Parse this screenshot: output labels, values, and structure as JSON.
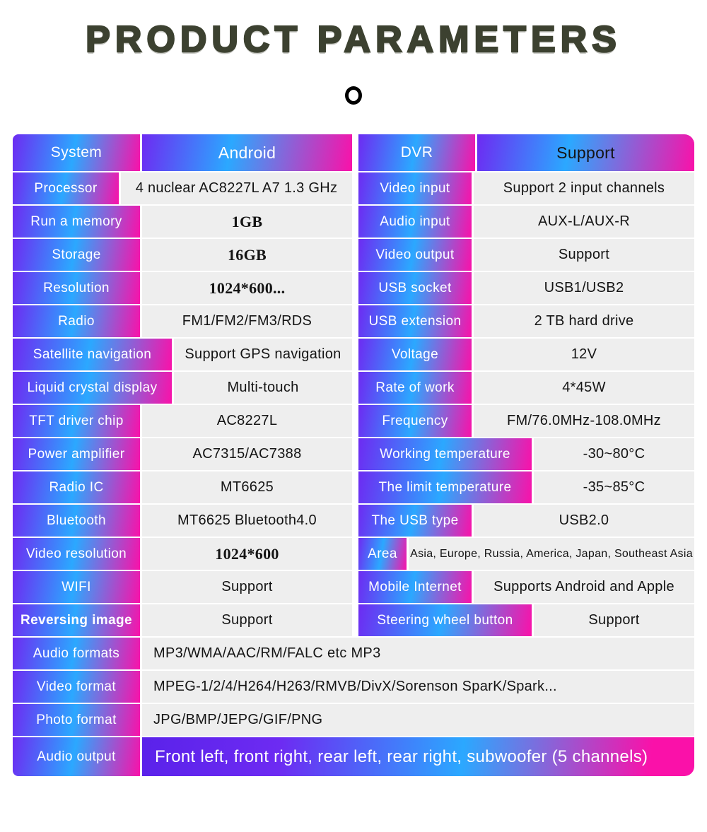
{
  "title": "PRODUCT PARAMETERS",
  "colors": {
    "gradient_purple": "#6D2BF2",
    "gradient_cyan": "#2BA8FF",
    "gradient_magenta": "#FA11A9",
    "title_text": "#3C4130",
    "value_cell_bg": "#EEEEEE",
    "value_text": "#141414",
    "label_text": "#FFFFFF"
  },
  "table": {
    "left_rows": [
      {
        "l": "System",
        "v": "Android",
        "lw": 180,
        "h": 1
      },
      {
        "l": "Processor",
        "v": "4 nuclear   AC8227L A7 1.3 GHz",
        "lw": 150
      },
      {
        "l": "Run a memory",
        "v": "1GB",
        "lw": 180,
        "vc": "serif"
      },
      {
        "l": "Storage",
        "v": "16GB",
        "lw": 180,
        "vc": "serif"
      },
      {
        "l": "Resolution",
        "v": "1024*600...",
        "lw": 180,
        "vc": "serif"
      },
      {
        "l": "Radio",
        "v": "FM1/FM2/FM3/RDS",
        "lw": 180
      },
      {
        "l": "Satellite navigation",
        "v": "Support GPS navigation",
        "lw": 225
      },
      {
        "l": "Liquid crystal display",
        "v": "Multi-touch",
        "lw": 225
      },
      {
        "l": "TFT driver chip",
        "v": "AC8227L",
        "lw": 180
      },
      {
        "l": "Power amplifier",
        "v": "AC7315/AC7388",
        "lw": 180
      },
      {
        "l": "Radio IC",
        "v": "MT6625",
        "lw": 180
      },
      {
        "l": "Bluetooth",
        "v": "MT6625 Bluetooth4.0",
        "lw": 180
      },
      {
        "l": "Video resolution",
        "v": "1024*600",
        "lw": 180,
        "vc": "serif"
      },
      {
        "l": "WIFI",
        "v": "Support",
        "lw": 180
      },
      {
        "l": "Reversing image",
        "v": "Support",
        "lw": 180,
        "lb": 1
      }
    ],
    "right_rows": [
      {
        "l": "DVR",
        "v": "Support",
        "lw": 165,
        "h": 1,
        "hv": "dark"
      },
      {
        "l": "Video input",
        "v": "Support 2 input channels",
        "lw": 160
      },
      {
        "l": "Audio input",
        "v": "AUX-L/AUX-R",
        "lw": 160
      },
      {
        "l": "Video output",
        "v": "Support",
        "lw": 160
      },
      {
        "l": "USB socket",
        "v": "USB1/USB2",
        "lw": 160
      },
      {
        "l": "USB extension",
        "v": "2 TB hard drive",
        "lw": 160
      },
      {
        "l": "Voltage",
        "v": "12V",
        "lw": 160
      },
      {
        "l": "Rate of work",
        "v": "4*45W",
        "lw": 160
      },
      {
        "l": "Frequency",
        "v": "FM/76.0MHz-108.0MHz",
        "lw": 160
      },
      {
        "l": "Working temperature",
        "v": "-30~80°C",
        "lw": 245
      },
      {
        "l": "The limit temperature",
        "v": "-35~85°C",
        "lw": 245
      },
      {
        "l": "The USB type",
        "v": "USB2.0",
        "lw": 160
      },
      {
        "l": "Area",
        "v": "Asia, Europe, Russia, America, Japan, Southeast Asia",
        "lw": 68,
        "vc": "small"
      },
      {
        "l": "Mobile Internet",
        "v": "Supports Android and Apple",
        "lw": 160
      },
      {
        "l": "Steering wheel button",
        "v": "Support",
        "lw": 245
      }
    ],
    "full_rows": [
      {
        "l": "Audio formats",
        "v": "MP3/WMA/AAC/RM/FALC etc MP3",
        "lw": 180,
        "vc": "left"
      },
      {
        "l": "Video format",
        "v": "MPEG-1/2/4/H264/H263/RMVB/DivX/Sorenson SparK/Spark...",
        "lw": 180,
        "vc": "left"
      },
      {
        "l": "Photo format",
        "v": "JPG/BMP/JEPG/GIF/PNG",
        "lw": 180,
        "vc": "left"
      },
      {
        "l": "Audio output",
        "v": "Front left, front right, rear left, rear right, subwoofer (5 channels)",
        "lw": 180,
        "vc": "gradfull"
      }
    ]
  }
}
